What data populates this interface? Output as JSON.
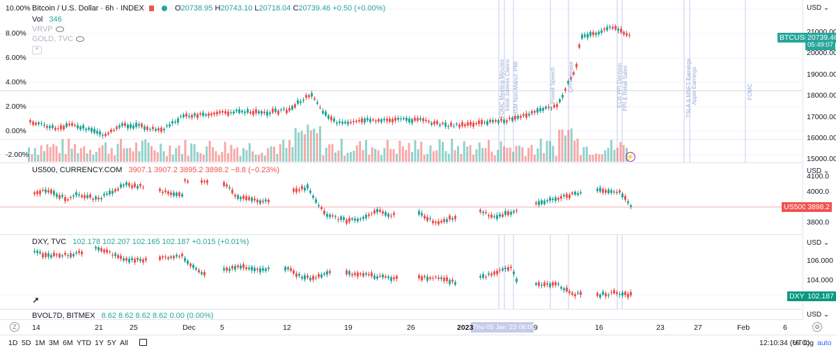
{
  "main": {
    "title": "Bitcoin / U.S. Dollar · 6h · INDEX",
    "ohlc": {
      "o_label": "O",
      "o": "20738.95",
      "h_label": "H",
      "h": "20743.10",
      "l_label": "L",
      "l": "20718.04",
      "c_label": "C",
      "c": "20739.46",
      "change": "+0.50 (+0.00%)"
    },
    "vol_label": "Vol",
    "vol_value": "346",
    "indicators": [
      "VRVP",
      "GOLD, TVC"
    ],
    "percent_ticks": [
      "10.00%",
      "8.00%",
      "6.00%",
      "4.00%",
      "2.00%",
      "0.00%",
      "-2.00%"
    ],
    "price_ticks": [
      "21000.00",
      "20000.00",
      "19000.00",
      "18000.00",
      "17000.00",
      "16000.00",
      "15000.00"
    ],
    "currency": "USD",
    "tag_symbol": "BTCUSD",
    "tag_price": "20739.46",
    "tag_countdown": "05:49:07",
    "color_up": "#26a69a",
    "color_down": "#ef5350"
  },
  "events": [
    "FOMC Meeting Minutes",
    "Initial Jobless Claims",
    "ISM Non-Manuf. PMI",
    "Powell Speech",
    "CPI Release",
    "ECB PPI Decision",
    "PPI & Retail Sales",
    "TSLA & MSFT Earnings",
    "Apple Earnings",
    "FOMC"
  ],
  "us500": {
    "title": "US500, CURRENCY.COM",
    "o": "3907.1",
    "h": "3907.2",
    "l": "3895.2",
    "c": "3898.2",
    "change": "−8.8 (−0.23%)",
    "ticks": [
      "4100.0",
      "4000.0",
      "3800.0"
    ],
    "currency": "USD",
    "tag_symbol": "US500",
    "tag_price": "3898.2"
  },
  "dxy": {
    "title": "DXY, TVC",
    "o": "102.178",
    "h": "102.207",
    "l": "102.165",
    "c": "102.187",
    "change": "+0.015 (+0.01%)",
    "ticks": [
      "106.000",
      "104.000"
    ],
    "currency": "USD",
    "tag_symbol": "DXY",
    "tag_price": "102.187"
  },
  "bvol": {
    "title": "BVOL7D, BITMEX",
    "o": "8.62",
    "h": "8.62",
    "l": "8.62",
    "c": "8.62",
    "change": "0.00 (0.00%)",
    "currency": "USD"
  },
  "time_axis": {
    "ticks": [
      "14",
      "21",
      "25",
      "Dec",
      "5",
      "12",
      "19",
      "26",
      "2023",
      "9",
      "16",
      "23",
      "27",
      "Feb",
      "6"
    ],
    "cursor_label": "Thu 05 Jan '23  06:00"
  },
  "bottom_bar": {
    "timeframes": [
      "1D",
      "5D",
      "1M",
      "3M",
      "6M",
      "YTD",
      "1Y",
      "5Y",
      "All"
    ],
    "clock": "12:10:34 (UTC)",
    "pct": "%",
    "log": "log",
    "auto": "auto"
  }
}
